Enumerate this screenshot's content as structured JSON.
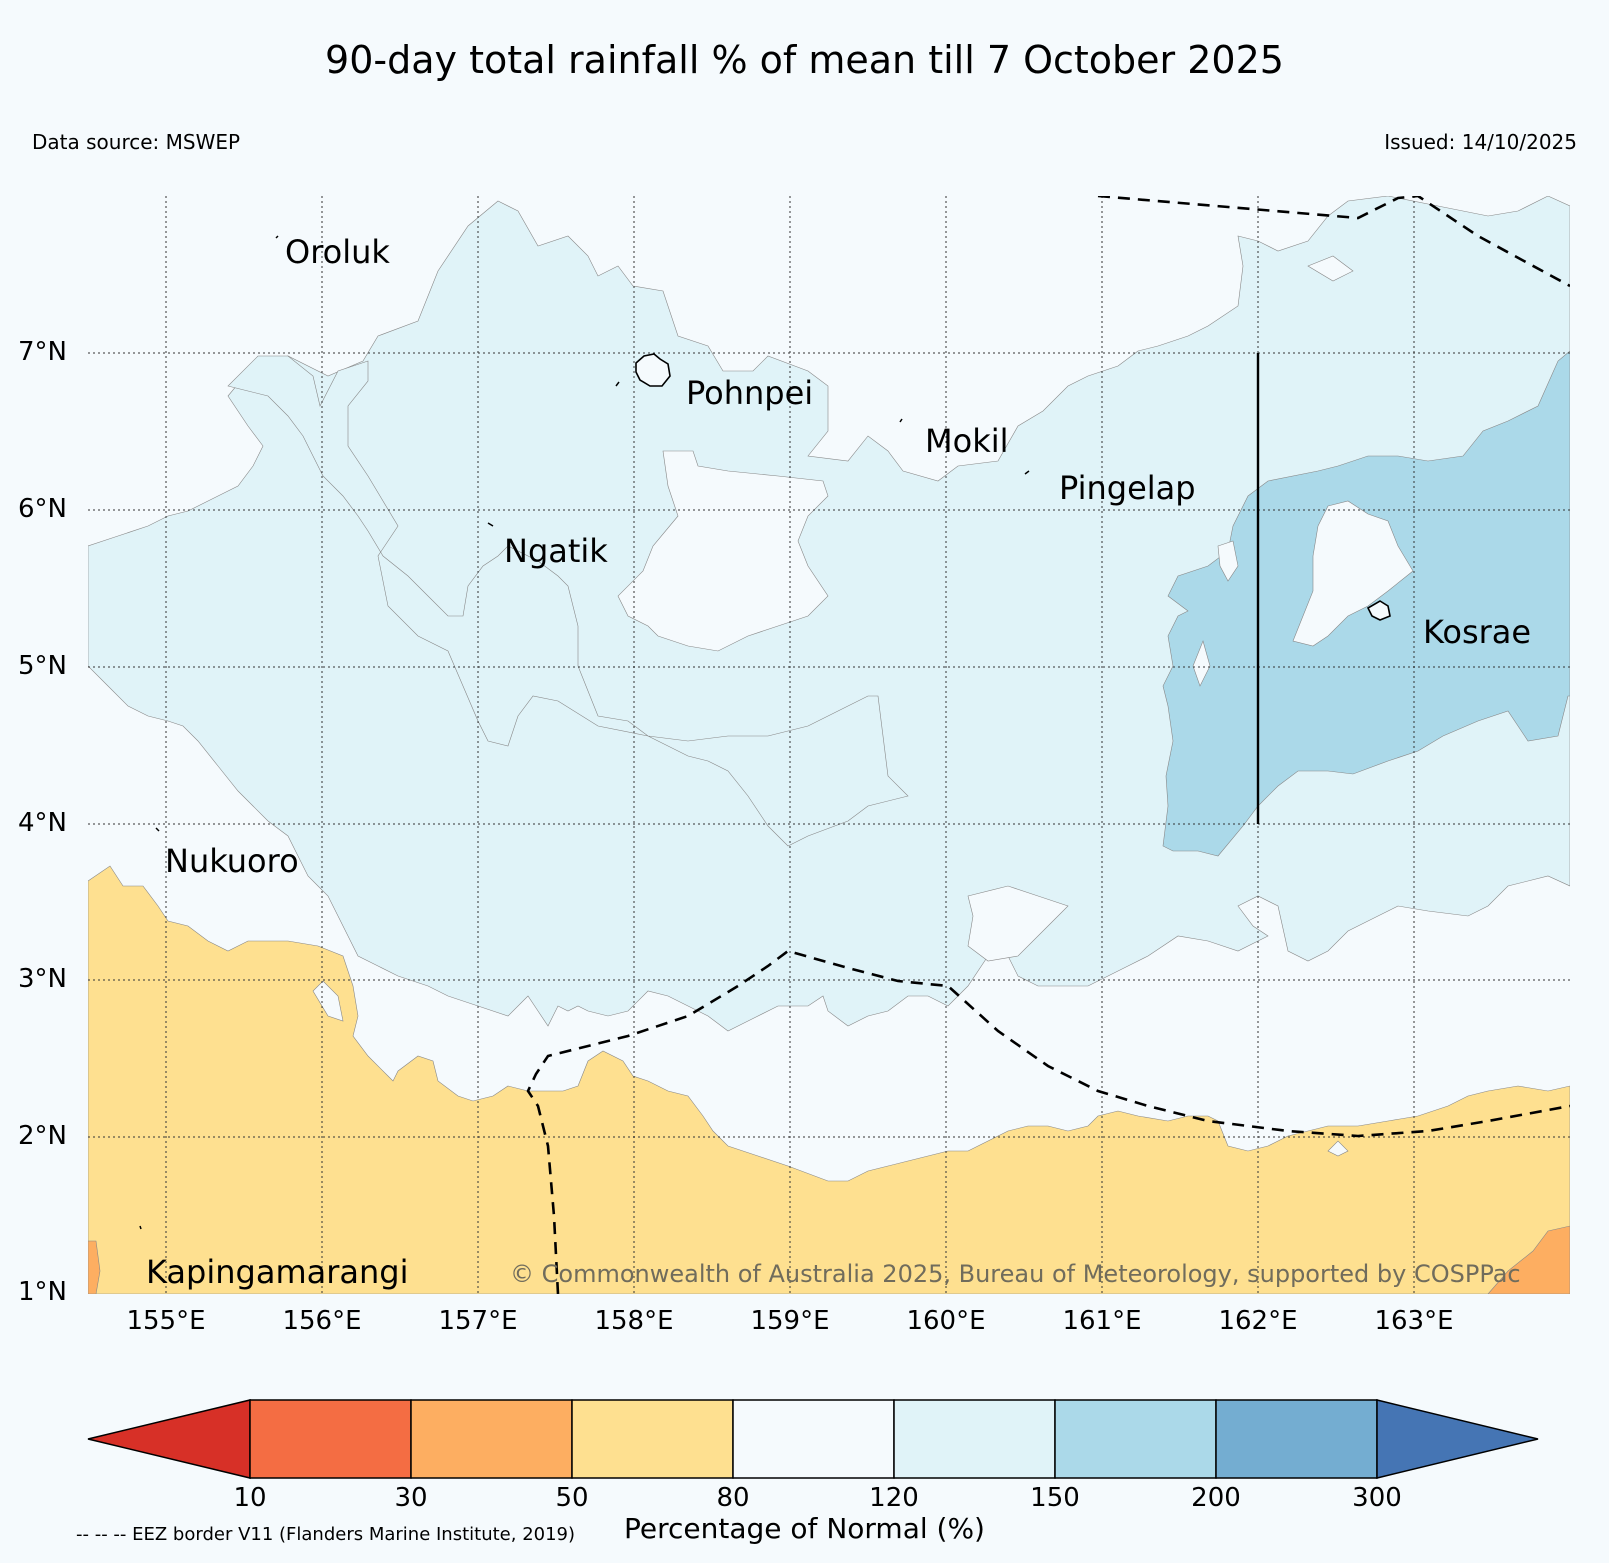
{
  "title": "90-day total rainfall % of mean till 7 October 2025",
  "data_source": "Data source: MSWEP",
  "issued": "Issued: 14/10/2025",
  "copyright": "© Commonwealth of Australia 2025, Bureau of Meteorology, supported by COSPPac",
  "eez_note": "-- -- -- EEZ border V11 (Flanders Marine Institute, 2019)",
  "latitude_labels": [
    "7°N",
    "6°N",
    "5°N",
    "4°N",
    "3°N",
    "2°N",
    "1°N"
  ],
  "longitude_labels": [
    "155°E",
    "156°E",
    "157°E",
    "158°E",
    "159°E",
    "160°E",
    "161°E",
    "162°E",
    "163°E"
  ],
  "places": [
    {
      "name": "Oroluk"
    },
    {
      "name": "Pohnpei"
    },
    {
      "name": "Mokil"
    },
    {
      "name": "Pingelap"
    },
    {
      "name": "Ngatik"
    },
    {
      "name": "Kosrae"
    },
    {
      "name": "Nukuoro"
    },
    {
      "name": "Kapingamarangi"
    }
  ],
  "colorbar": {
    "title": "Percentage of Normal (%)",
    "ticks": [
      "10",
      "30",
      "50",
      "80",
      "120",
      "150",
      "200",
      "300"
    ],
    "colors": {
      "lt10": "#d73027",
      "10-30": "#f46d43",
      "30-50": "#fdae61",
      "50-80": "#fee090",
      "80-120": "#f5fafd",
      "120-150": "#e0f3f8",
      "150-200": "#abd9e9",
      "200-300": "#74add1",
      "gt300": "#4575b4"
    }
  }
}
